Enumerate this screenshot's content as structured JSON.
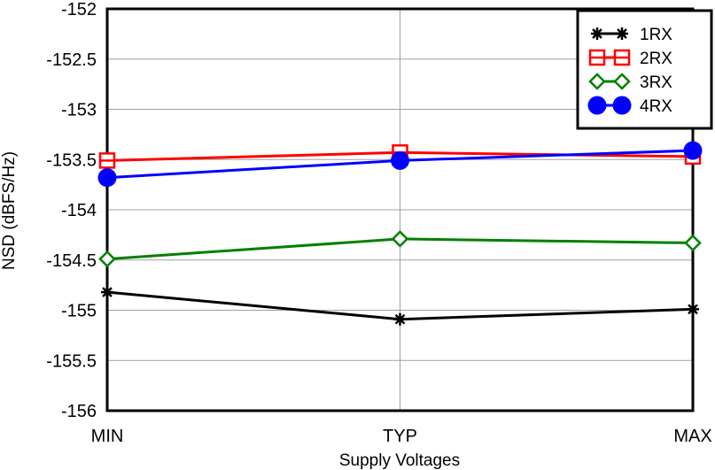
{
  "chart_data": {
    "type": "line",
    "title": "",
    "xlabel": "Supply Voltages",
    "ylabel": "NSD (dBFS/Hz)",
    "categories": [
      "MIN",
      "TYP",
      "MAX"
    ],
    "ylim": [
      -156,
      -152
    ],
    "yticks": [
      "-152",
      "-152.5",
      "-153",
      "-153.5",
      "-154",
      "-154.5",
      "-155",
      "-155.5",
      "-156"
    ],
    "ytick_values": [
      -152,
      -152.5,
      -153,
      -153.5,
      -154,
      -154.5,
      -155,
      -155.5,
      -156
    ],
    "grid": true,
    "legend_position": "top-right",
    "series": [
      {
        "name": "1RX",
        "values": [
          -154.82,
          -155.09,
          -154.99
        ],
        "color": "#000000",
        "marker": "asterisk"
      },
      {
        "name": "2RX",
        "values": [
          -153.51,
          -153.43,
          -153.47
        ],
        "color": "#ff0000",
        "marker": "square-split"
      },
      {
        "name": "3RX",
        "values": [
          -154.49,
          -154.29,
          -154.33
        ],
        "color": "#008000",
        "marker": "diamond"
      },
      {
        "name": "4RX",
        "values": [
          -153.68,
          -153.51,
          -153.41
        ],
        "color": "#0000ff",
        "marker": "circle-filled"
      }
    ]
  }
}
